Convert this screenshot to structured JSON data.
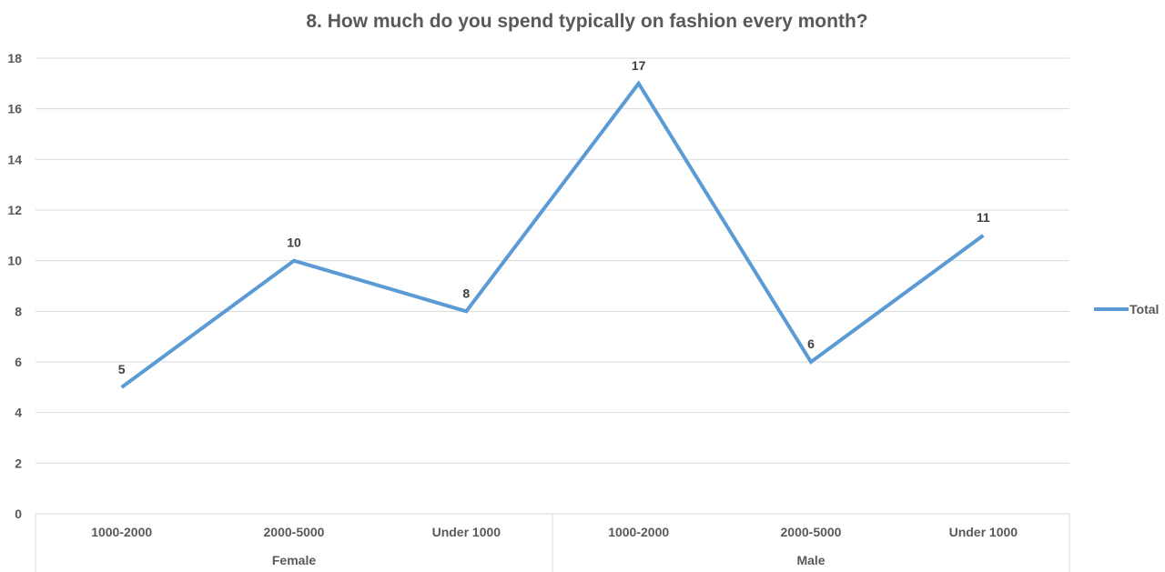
{
  "chart_data": {
    "type": "line",
    "title": "8. How much do you spend typically on fashion every month?",
    "categories": [
      "1000-2000",
      "2000-5000",
      "Under 1000",
      "1000-2000",
      "2000-5000",
      "Under 1000"
    ],
    "groups": [
      {
        "name": "Female",
        "count": 3
      },
      {
        "name": "Male",
        "count": 3
      }
    ],
    "series": [
      {
        "name": "Total",
        "values": [
          5,
          10,
          8,
          17,
          6,
          11
        ],
        "color": "#5b9bd5"
      }
    ],
    "ylim": [
      0,
      18
    ],
    "yticks": [
      0,
      2,
      4,
      6,
      8,
      10,
      12,
      14,
      16,
      18
    ],
    "grid": true,
    "data_labels": true,
    "legend_position": "right"
  }
}
